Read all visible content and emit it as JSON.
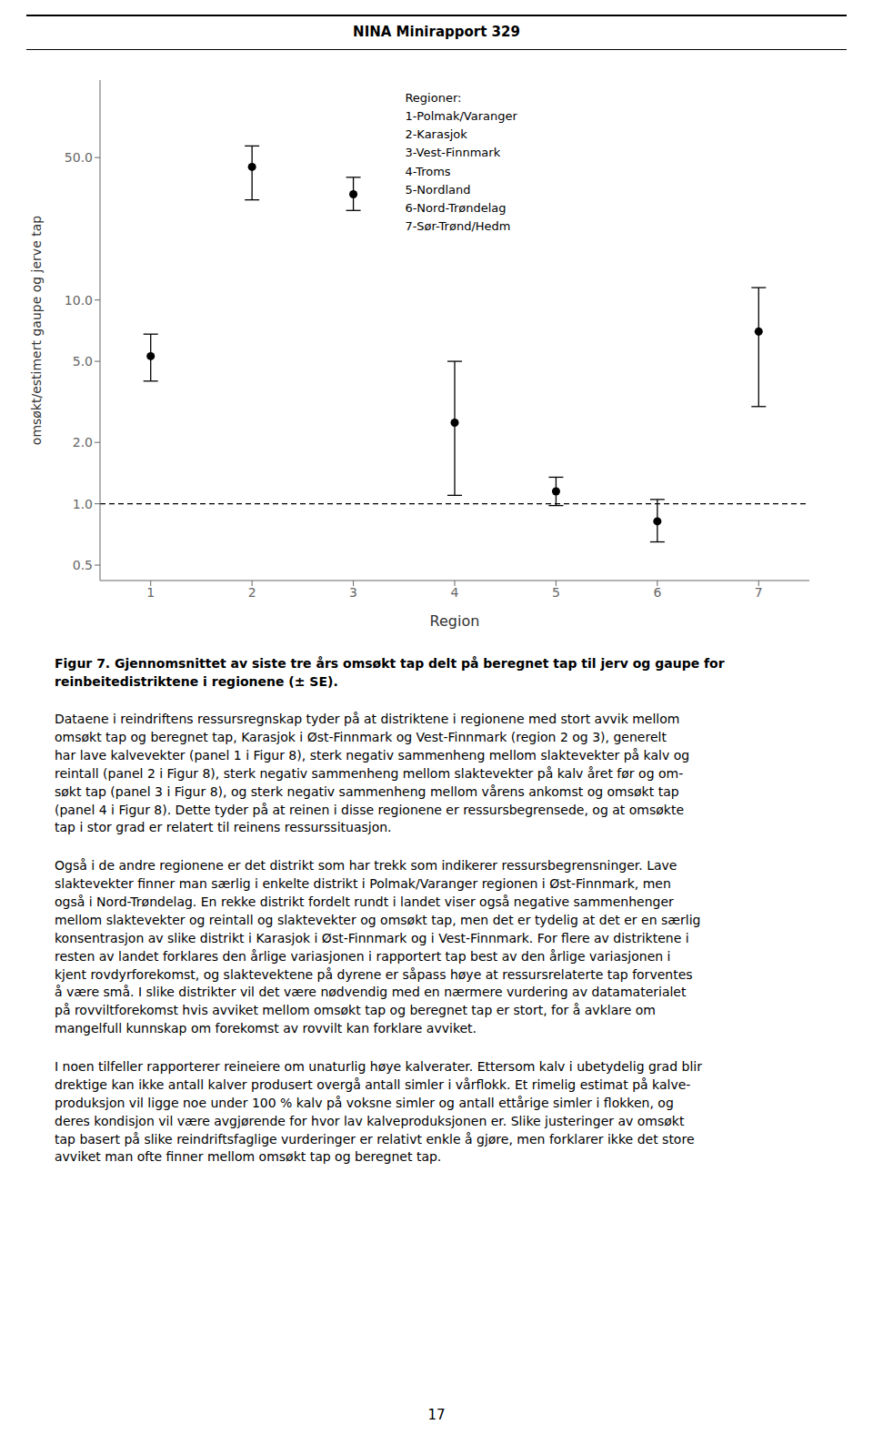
{
  "chart_data": {
    "type": "scatter",
    "title": "NINA Minirapport 329",
    "x_label": "Region",
    "y_label": "omsøkt/estimert gaupe og jerve tap",
    "x": [
      1,
      2,
      3,
      4,
      5,
      6,
      7
    ],
    "values": [
      5.3,
      45.0,
      33.0,
      2.5,
      1.15,
      0.82,
      7.0
    ],
    "error_minus": [
      1.3,
      14.0,
      5.5,
      1.4,
      0.17,
      0.17,
      4.0
    ],
    "error_plus": [
      1.5,
      12.0,
      7.0,
      2.5,
      0.2,
      0.23,
      4.5
    ],
    "color": "#000000",
    "marker": "circle",
    "hline": 1.0,
    "log": "y",
    "grid": false,
    "xlim": [
      0.5,
      7.5
    ],
    "xticks": [
      1,
      2,
      3,
      4,
      5,
      6,
      7
    ],
    "ylim": [
      0.42,
      120.0
    ],
    "yticks": [
      0.5,
      {
        "value": 1.0,
        "label": "1.0"
      },
      {
        "value": 2.0,
        "label": "2.0"
      },
      {
        "value": 5.0,
        "label": "5.0"
      },
      {
        "value": 10.0,
        "label": "10.0"
      },
      {
        "value": 50.0,
        "label": "50.0"
      }
    ],
    "annotations": [
      "Regioner:",
      "1-Polmak/Varanger",
      "2-Karasjok",
      "3-Vest-Finnmark",
      "4-Troms",
      "5-Nordland",
      "6-Nord-Trøndelag",
      "7-Sør-Trønd/Hedm"
    ],
    "caption": "Figur 7. Gjennomsnittet av siste tre års omsøkt tap delt på beregnet tap til jerv og gaupe for\nreinbeitedistriktene i regionene (± SE).",
    "paragraphs": [
      "Dataene i reindriftens ressursregnskap tyder på at distriktene i regionene med stort avvik mellom\nomsøkt tap og beregnet tap, Karasjok i Øst-Finnmark og Vest-Finnmark (region 2 og 3), generelt\nhar lave kalvevekter (panel 1 i ​Figur 8​), sterk negativ sammenheng mellom slaktevekter på kalv og\nreintall (panel 2 i ​Figur 8​), sterk negativ sammenheng mellom slaktevekter på kalv året før og om-\nsøkt tap (panel 3 i ​Figur 8​), og sterk negativ sammenheng mellom vårens ankomst og omsøkt tap\n(panel 4 i ​Figur 8​). Dette tyder på at reinen i disse regionene er ressursbegrensede, og at omsøkte\ntap i stor grad er relatert til reinens ressurssituasjon.",
      "Også i de andre regionene er det distrikt som har trekk som indikerer ressursbegrensninger. Lave\nslaktevekter finner man særlig i enkelte distrikt i Polmak/Varanger regionen i Øst-Finnmark, men\nogså i Nord-Trøndelag. En rekke distrikt fordelt rundt i landet viser også negative sammenhenger\nmellom slaktevekter og reintall og slaktevekter og omsøkt tap, men det er tydelig at det er en særlig\nkonsentrasjon av slike distrikt i Karasjok i Øst-Finnmark og i Vest-Finnmark. For flere av distriktene i\nresten av landet forklares den årlige variasjonen i rapportert tap best av den årlige variasjonen i\nkjent rovdyrforekomst, og slaktevektene på dyrene er såpass høye at ressursrelaterte tap forventes\nå være små. I slike distrikter vil det være nødvendig med en nærmere vurdering av datamaterialet\npå rovviltforekomst hvis avviket mellom omsøkt tap og beregnet tap er stort, for å avklare om\nmangelfull kunnskap om forekomst av rovvilt kan forklare avviket.",
      "I noen tilfeller rapporterer reineiere om unaturlig høye kalverater. Ettersom kalv i ubetydelig grad blir\ndrektige kan ikke antall kalver produsert overgå antall simler i vårflokk. Et rimelig estimat på kalve-\nproduksjon vil ligge noe under 100 % kalv på voksne simler og antall ettårige simler i flokken, og\nderes kondisjon vil være avgjørende for hvor lav kalveproduksjonen er. Slike justeringer av omsøkt\ntap basert på slike reindriftsfaglige vurderinger er relativt enkle å gjøre, men forklarer ikke det store\navviket man ofte finner mellom omsøkt tap og beregnet tap."
    ],
    "page_number": "17"
  }
}
